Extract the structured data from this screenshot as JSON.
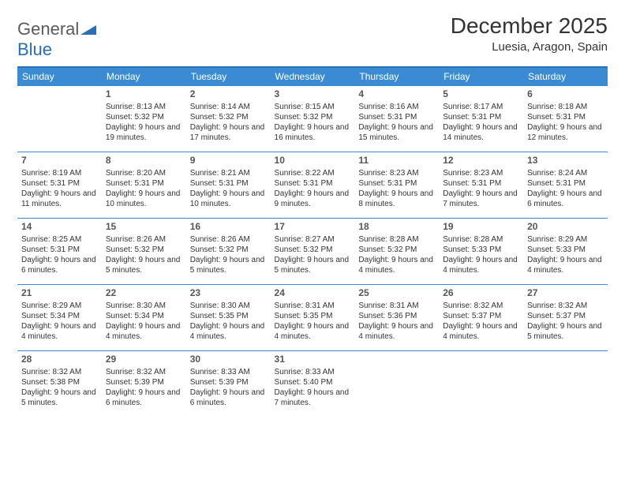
{
  "logo": {
    "general": "General",
    "blue": "Blue"
  },
  "title": "December 2025",
  "location": "Luesia, Aragon, Spain",
  "colors": {
    "header_bg": "#3b8bd4",
    "header_text": "#ffffff",
    "row_border": "#3b8bd4",
    "top_border": "#2a6fb5",
    "text": "#333333",
    "daynum": "#555555",
    "logo_blue": "#2a6fb5",
    "logo_gray": "#5a5a5a"
  },
  "typography": {
    "title_fontsize": 28,
    "location_fontsize": 15,
    "day_header_fontsize": 12,
    "cell_fontsize": 10,
    "daynum_fontsize": 12
  },
  "day_headers": [
    "Sunday",
    "Monday",
    "Tuesday",
    "Wednesday",
    "Thursday",
    "Friday",
    "Saturday"
  ],
  "weeks": [
    [
      null,
      {
        "n": "1",
        "sr": "Sunrise: 8:13 AM",
        "ss": "Sunset: 5:32 PM",
        "dl": "Daylight: 9 hours and 19 minutes."
      },
      {
        "n": "2",
        "sr": "Sunrise: 8:14 AM",
        "ss": "Sunset: 5:32 PM",
        "dl": "Daylight: 9 hours and 17 minutes."
      },
      {
        "n": "3",
        "sr": "Sunrise: 8:15 AM",
        "ss": "Sunset: 5:32 PM",
        "dl": "Daylight: 9 hours and 16 minutes."
      },
      {
        "n": "4",
        "sr": "Sunrise: 8:16 AM",
        "ss": "Sunset: 5:31 PM",
        "dl": "Daylight: 9 hours and 15 minutes."
      },
      {
        "n": "5",
        "sr": "Sunrise: 8:17 AM",
        "ss": "Sunset: 5:31 PM",
        "dl": "Daylight: 9 hours and 14 minutes."
      },
      {
        "n": "6",
        "sr": "Sunrise: 8:18 AM",
        "ss": "Sunset: 5:31 PM",
        "dl": "Daylight: 9 hours and 12 minutes."
      }
    ],
    [
      {
        "n": "7",
        "sr": "Sunrise: 8:19 AM",
        "ss": "Sunset: 5:31 PM",
        "dl": "Daylight: 9 hours and 11 minutes."
      },
      {
        "n": "8",
        "sr": "Sunrise: 8:20 AM",
        "ss": "Sunset: 5:31 PM",
        "dl": "Daylight: 9 hours and 10 minutes."
      },
      {
        "n": "9",
        "sr": "Sunrise: 8:21 AM",
        "ss": "Sunset: 5:31 PM",
        "dl": "Daylight: 9 hours and 10 minutes."
      },
      {
        "n": "10",
        "sr": "Sunrise: 8:22 AM",
        "ss": "Sunset: 5:31 PM",
        "dl": "Daylight: 9 hours and 9 minutes."
      },
      {
        "n": "11",
        "sr": "Sunrise: 8:23 AM",
        "ss": "Sunset: 5:31 PM",
        "dl": "Daylight: 9 hours and 8 minutes."
      },
      {
        "n": "12",
        "sr": "Sunrise: 8:23 AM",
        "ss": "Sunset: 5:31 PM",
        "dl": "Daylight: 9 hours and 7 minutes."
      },
      {
        "n": "13",
        "sr": "Sunrise: 8:24 AM",
        "ss": "Sunset: 5:31 PM",
        "dl": "Daylight: 9 hours and 6 minutes."
      }
    ],
    [
      {
        "n": "14",
        "sr": "Sunrise: 8:25 AM",
        "ss": "Sunset: 5:31 PM",
        "dl": "Daylight: 9 hours and 6 minutes."
      },
      {
        "n": "15",
        "sr": "Sunrise: 8:26 AM",
        "ss": "Sunset: 5:32 PM",
        "dl": "Daylight: 9 hours and 5 minutes."
      },
      {
        "n": "16",
        "sr": "Sunrise: 8:26 AM",
        "ss": "Sunset: 5:32 PM",
        "dl": "Daylight: 9 hours and 5 minutes."
      },
      {
        "n": "17",
        "sr": "Sunrise: 8:27 AM",
        "ss": "Sunset: 5:32 PM",
        "dl": "Daylight: 9 hours and 5 minutes."
      },
      {
        "n": "18",
        "sr": "Sunrise: 8:28 AM",
        "ss": "Sunset: 5:32 PM",
        "dl": "Daylight: 9 hours and 4 minutes."
      },
      {
        "n": "19",
        "sr": "Sunrise: 8:28 AM",
        "ss": "Sunset: 5:33 PM",
        "dl": "Daylight: 9 hours and 4 minutes."
      },
      {
        "n": "20",
        "sr": "Sunrise: 8:29 AM",
        "ss": "Sunset: 5:33 PM",
        "dl": "Daylight: 9 hours and 4 minutes."
      }
    ],
    [
      {
        "n": "21",
        "sr": "Sunrise: 8:29 AM",
        "ss": "Sunset: 5:34 PM",
        "dl": "Daylight: 9 hours and 4 minutes."
      },
      {
        "n": "22",
        "sr": "Sunrise: 8:30 AM",
        "ss": "Sunset: 5:34 PM",
        "dl": "Daylight: 9 hours and 4 minutes."
      },
      {
        "n": "23",
        "sr": "Sunrise: 8:30 AM",
        "ss": "Sunset: 5:35 PM",
        "dl": "Daylight: 9 hours and 4 minutes."
      },
      {
        "n": "24",
        "sr": "Sunrise: 8:31 AM",
        "ss": "Sunset: 5:35 PM",
        "dl": "Daylight: 9 hours and 4 minutes."
      },
      {
        "n": "25",
        "sr": "Sunrise: 8:31 AM",
        "ss": "Sunset: 5:36 PM",
        "dl": "Daylight: 9 hours and 4 minutes."
      },
      {
        "n": "26",
        "sr": "Sunrise: 8:32 AM",
        "ss": "Sunset: 5:37 PM",
        "dl": "Daylight: 9 hours and 4 minutes."
      },
      {
        "n": "27",
        "sr": "Sunrise: 8:32 AM",
        "ss": "Sunset: 5:37 PM",
        "dl": "Daylight: 9 hours and 5 minutes."
      }
    ],
    [
      {
        "n": "28",
        "sr": "Sunrise: 8:32 AM",
        "ss": "Sunset: 5:38 PM",
        "dl": "Daylight: 9 hours and 5 minutes."
      },
      {
        "n": "29",
        "sr": "Sunrise: 8:32 AM",
        "ss": "Sunset: 5:39 PM",
        "dl": "Daylight: 9 hours and 6 minutes."
      },
      {
        "n": "30",
        "sr": "Sunrise: 8:33 AM",
        "ss": "Sunset: 5:39 PM",
        "dl": "Daylight: 9 hours and 6 minutes."
      },
      {
        "n": "31",
        "sr": "Sunrise: 8:33 AM",
        "ss": "Sunset: 5:40 PM",
        "dl": "Daylight: 9 hours and 7 minutes."
      },
      null,
      null,
      null
    ]
  ]
}
